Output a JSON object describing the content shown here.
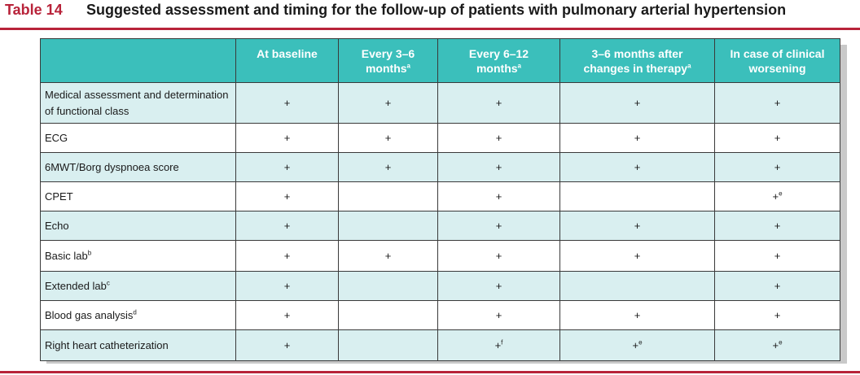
{
  "title": {
    "number": "Table 14",
    "text": "Suggested assessment and timing for the follow-up of patients with pulmonary arterial hypertension"
  },
  "columns": [
    {
      "label": "At baseline",
      "sup": ""
    },
    {
      "label": "Every 3–6 months",
      "sup": "a"
    },
    {
      "label": "Every 6–12 months",
      "sup": "a"
    },
    {
      "label": "3–6 months after changes in therapy",
      "sup": "a"
    },
    {
      "label": "In case of clinical worsening",
      "sup": ""
    }
  ],
  "rows": [
    {
      "label": "Medical assessment and determination of functional class",
      "label_sup": "",
      "cells": [
        {
          "v": "+",
          "s": ""
        },
        {
          "v": "+",
          "s": ""
        },
        {
          "v": "+",
          "s": ""
        },
        {
          "v": "+",
          "s": ""
        },
        {
          "v": "+",
          "s": ""
        }
      ]
    },
    {
      "label": "ECG",
      "label_sup": "",
      "cells": [
        {
          "v": "+",
          "s": ""
        },
        {
          "v": "+",
          "s": ""
        },
        {
          "v": "+",
          "s": ""
        },
        {
          "v": "+",
          "s": ""
        },
        {
          "v": "+",
          "s": ""
        }
      ]
    },
    {
      "label": "6MWT/Borg dyspnoea score",
      "label_sup": "",
      "cells": [
        {
          "v": "+",
          "s": ""
        },
        {
          "v": "+",
          "s": ""
        },
        {
          "v": "+",
          "s": ""
        },
        {
          "v": "+",
          "s": ""
        },
        {
          "v": "+",
          "s": ""
        }
      ]
    },
    {
      "label": "CPET",
      "label_sup": "",
      "cells": [
        {
          "v": "+",
          "s": ""
        },
        {
          "v": "",
          "s": ""
        },
        {
          "v": "+",
          "s": ""
        },
        {
          "v": "",
          "s": ""
        },
        {
          "v": "+",
          "s": "e"
        }
      ]
    },
    {
      "label": "Echo",
      "label_sup": "",
      "cells": [
        {
          "v": "+",
          "s": ""
        },
        {
          "v": "",
          "s": ""
        },
        {
          "v": "+",
          "s": ""
        },
        {
          "v": "+",
          "s": ""
        },
        {
          "v": "+",
          "s": ""
        }
      ]
    },
    {
      "label": "Basic lab",
      "label_sup": "b",
      "cells": [
        {
          "v": "+",
          "s": ""
        },
        {
          "v": "+",
          "s": ""
        },
        {
          "v": "+",
          "s": ""
        },
        {
          "v": "+",
          "s": ""
        },
        {
          "v": "+",
          "s": ""
        }
      ]
    },
    {
      "label": "Extended lab",
      "label_sup": "c",
      "cells": [
        {
          "v": "+",
          "s": ""
        },
        {
          "v": "",
          "s": ""
        },
        {
          "v": "+",
          "s": ""
        },
        {
          "v": "",
          "s": ""
        },
        {
          "v": "+",
          "s": ""
        }
      ]
    },
    {
      "label": "Blood gas analysis",
      "label_sup": "d",
      "cells": [
        {
          "v": "+",
          "s": ""
        },
        {
          "v": "",
          "s": ""
        },
        {
          "v": "+",
          "s": ""
        },
        {
          "v": "+",
          "s": ""
        },
        {
          "v": "+",
          "s": ""
        }
      ]
    },
    {
      "label": "Right heart catheterization",
      "label_sup": "",
      "cells": [
        {
          "v": "+",
          "s": ""
        },
        {
          "v": "",
          "s": ""
        },
        {
          "v": "+",
          "s": "f"
        },
        {
          "v": "+",
          "s": "e"
        },
        {
          "v": "+",
          "s": "e"
        }
      ]
    }
  ],
  "colors": {
    "accent": "#b8233a",
    "header_bg": "#3bbfbb",
    "stripe_bg": "#d9eff0"
  }
}
